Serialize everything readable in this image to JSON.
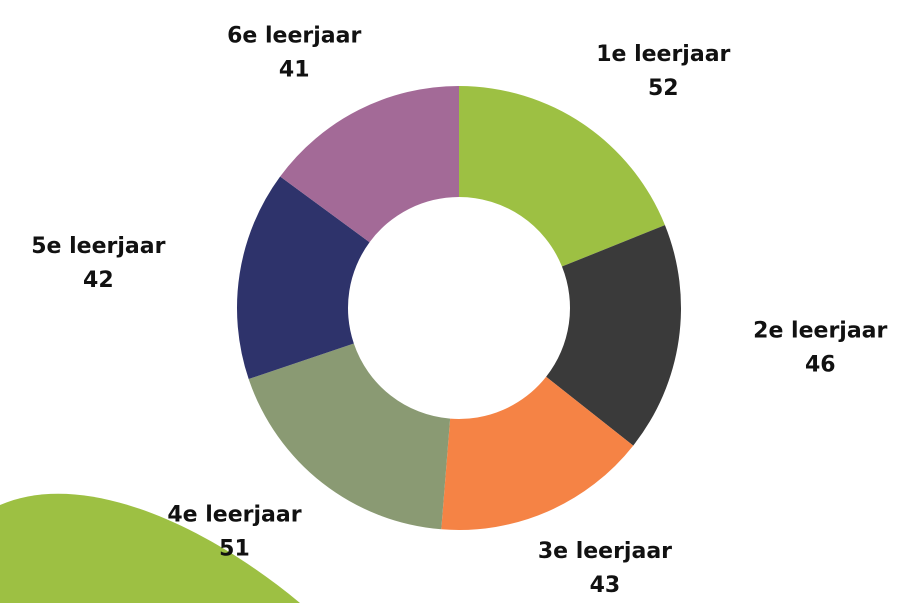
{
  "chart_data": {
    "type": "donut",
    "categories": [
      "1e leerjaar",
      "2e leerjaar",
      "3e leerjaar",
      "4e leerjaar",
      "5e leerjaar",
      "6e leerjaar"
    ],
    "values": [
      52,
      46,
      43,
      51,
      42,
      41
    ],
    "colors": [
      "#9dc043",
      "#3a3a3a",
      "#f58345",
      "#8a9a73",
      "#2e336b",
      "#a36a97"
    ]
  }
}
